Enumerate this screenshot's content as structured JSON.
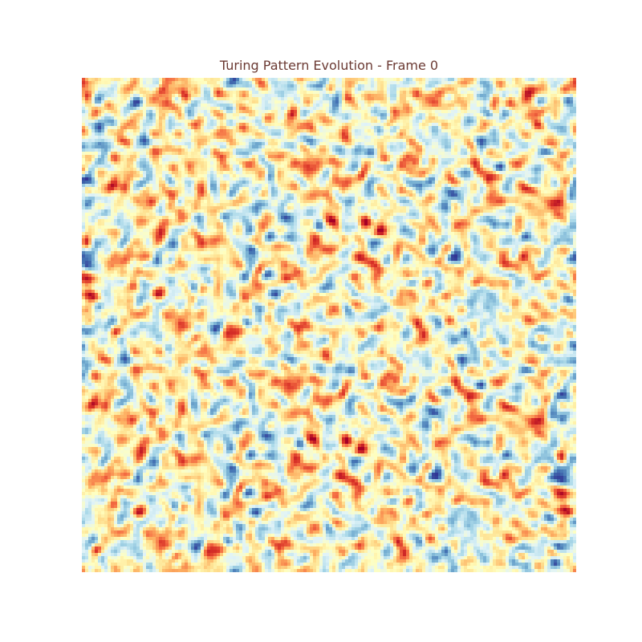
{
  "chart_data": {
    "type": "heatmap",
    "title": "Turing Pattern Evolution - Frame 0",
    "xlabel": "",
    "ylabel": "",
    "axes_visible": false,
    "grid": false,
    "colorbar": false,
    "legend": "none",
    "grid_size": [
      154,
      154
    ],
    "field_description": "random noise initial state",
    "colormap": [
      "#313695",
      "#4575b4",
      "#74add1",
      "#abd9e9",
      "#e0f3f8",
      "#ffffbf",
      "#fee090",
      "#fdae61",
      "#f46d43",
      "#d73027",
      "#a50026"
    ],
    "colormap_name": "RdYlBu_r",
    "title_color": "#6b3a33"
  }
}
